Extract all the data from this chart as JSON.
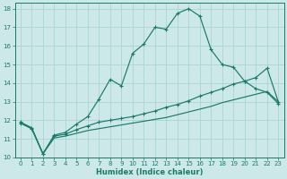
{
  "xlabel": "Humidex (Indice chaleur)",
  "ylabel": "",
  "xlim": [
    -0.5,
    23.5
  ],
  "ylim": [
    10,
    18.3
  ],
  "xticks": [
    0,
    1,
    2,
    3,
    4,
    5,
    6,
    7,
    8,
    9,
    10,
    11,
    12,
    13,
    14,
    15,
    16,
    17,
    18,
    19,
    20,
    21,
    22,
    23
  ],
  "yticks": [
    10,
    11,
    12,
    13,
    14,
    15,
    16,
    17,
    18
  ],
  "bg_color": "#cce8e8",
  "line_color": "#1a7a6a",
  "grid_color": "#aad4d4",
  "line1_x": [
    0,
    1,
    2,
    3,
    4,
    5,
    6,
    7,
    8,
    9,
    10,
    11,
    12,
    13,
    14,
    15,
    16,
    17,
    18,
    19,
    20,
    21,
    22,
    23
  ],
  "line1_y": [
    11.9,
    11.6,
    10.2,
    11.2,
    11.35,
    11.8,
    12.2,
    13.15,
    14.2,
    13.85,
    15.6,
    16.1,
    17.0,
    16.9,
    17.75,
    18.0,
    17.6,
    15.8,
    15.0,
    14.85,
    14.1,
    13.7,
    13.5,
    12.9
  ],
  "line2_x": [
    0,
    1,
    2,
    3,
    4,
    5,
    6,
    7,
    8,
    9,
    10,
    11,
    12,
    13,
    14,
    15,
    16,
    17,
    18,
    19,
    20,
    21,
    22,
    23
  ],
  "line2_y": [
    11.85,
    11.55,
    10.2,
    11.15,
    11.25,
    11.5,
    11.7,
    11.9,
    12.0,
    12.1,
    12.2,
    12.35,
    12.5,
    12.7,
    12.85,
    13.05,
    13.3,
    13.5,
    13.7,
    13.95,
    14.1,
    14.3,
    14.8,
    13.0
  ],
  "line3_x": [
    0,
    1,
    2,
    3,
    4,
    5,
    6,
    7,
    8,
    9,
    10,
    11,
    12,
    13,
    14,
    15,
    16,
    17,
    18,
    19,
    20,
    21,
    22,
    23
  ],
  "line3_y": [
    11.85,
    11.55,
    10.2,
    11.05,
    11.15,
    11.3,
    11.45,
    11.55,
    11.65,
    11.75,
    11.85,
    11.95,
    12.05,
    12.15,
    12.3,
    12.45,
    12.6,
    12.75,
    12.95,
    13.1,
    13.25,
    13.4,
    13.55,
    13.0
  ]
}
